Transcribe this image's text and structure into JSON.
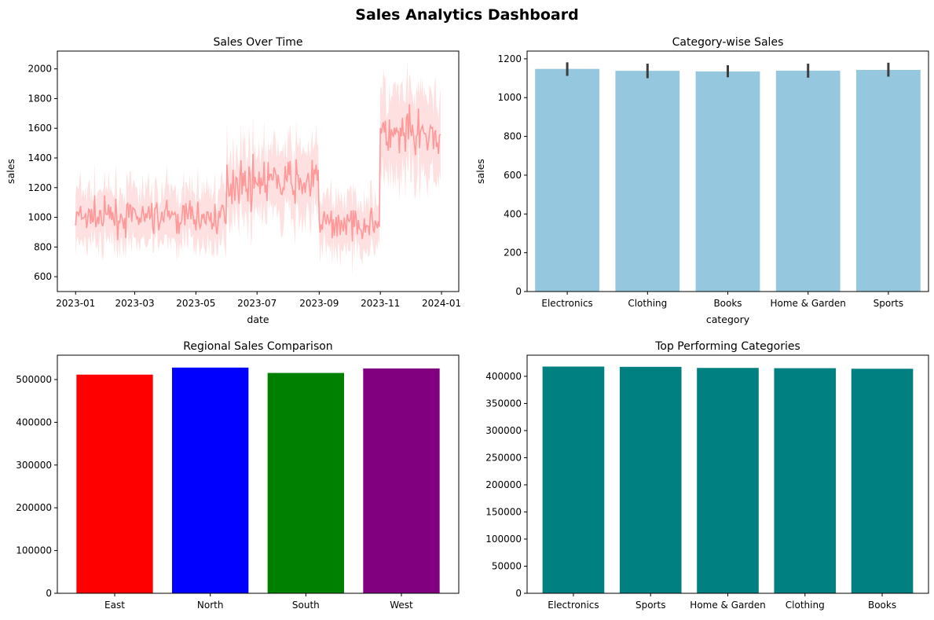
{
  "figure": {
    "title": "Sales Analytics Dashboard"
  },
  "chart_data": [
    {
      "id": "sales-over-time",
      "type": "line",
      "title": "Sales Over Time",
      "xlabel": "date",
      "ylabel": "sales",
      "x_start": "2023-01-01",
      "x_end": "2023-12-31",
      "x_ticks": [
        "2023-01",
        "2023-03",
        "2023-05",
        "2023-07",
        "2023-09",
        "2023-11",
        "2024-01"
      ],
      "ylim": [
        500,
        2120
      ],
      "y_ticks": [
        600,
        800,
        1000,
        1200,
        1400,
        1600,
        1800,
        2000
      ],
      "line_color": "#ff9999",
      "band_color": "#ffdddd",
      "segments": [
        {
          "from": "2023-01-01",
          "to": "2023-05-31",
          "mean": 1000
        },
        {
          "from": "2023-06-01",
          "to": "2023-08-31",
          "mean": 1240
        },
        {
          "from": "2023-09-01",
          "to": "2023-10-31",
          "mean": 960
        },
        {
          "from": "2023-11-01",
          "to": "2023-12-31",
          "mean": 1540
        }
      ],
      "grid": false
    },
    {
      "id": "category-wise-sales",
      "type": "bar",
      "title": "Category-wise Sales",
      "xlabel": "category",
      "ylabel": "sales",
      "categories": [
        "Electronics",
        "Clothing",
        "Books",
        "Home & Garden",
        "Sports"
      ],
      "values": [
        1148,
        1138,
        1135,
        1139,
        1143
      ],
      "error_low": [
        1112,
        1100,
        1105,
        1103,
        1108
      ],
      "error_high": [
        1182,
        1175,
        1167,
        1175,
        1180
      ],
      "ylim": [
        0,
        1240
      ],
      "y_ticks": [
        0,
        200,
        400,
        600,
        800,
        1000,
        1200
      ],
      "bar_color": "#95c8de",
      "error_color": "#3d3d3d",
      "grid": false
    },
    {
      "id": "regional-sales-comparison",
      "type": "bar",
      "title": "Regional Sales Comparison",
      "xlabel": "",
      "ylabel": "",
      "categories": [
        "East",
        "North",
        "South",
        "West"
      ],
      "values": [
        511500,
        528000,
        515500,
        526000
      ],
      "colors": [
        "#ff0000",
        "#0000ff",
        "#008000",
        "#800080"
      ],
      "ylim": [
        0,
        557000
      ],
      "y_ticks": [
        0,
        100000,
        200000,
        300000,
        400000,
        500000
      ],
      "grid": false
    },
    {
      "id": "top-performing-categories",
      "type": "bar",
      "title": "Top Performing Categories",
      "xlabel": "",
      "ylabel": "",
      "categories": [
        "Electronics",
        "Sports",
        "Home & Garden",
        "Clothing",
        "Books"
      ],
      "values": [
        418000,
        417500,
        415500,
        415000,
        414000
      ],
      "ylim": [
        0,
        439000
      ],
      "y_ticks": [
        0,
        50000,
        100000,
        150000,
        200000,
        250000,
        300000,
        350000,
        400000
      ],
      "bar_color": "#008080",
      "grid": false
    }
  ]
}
